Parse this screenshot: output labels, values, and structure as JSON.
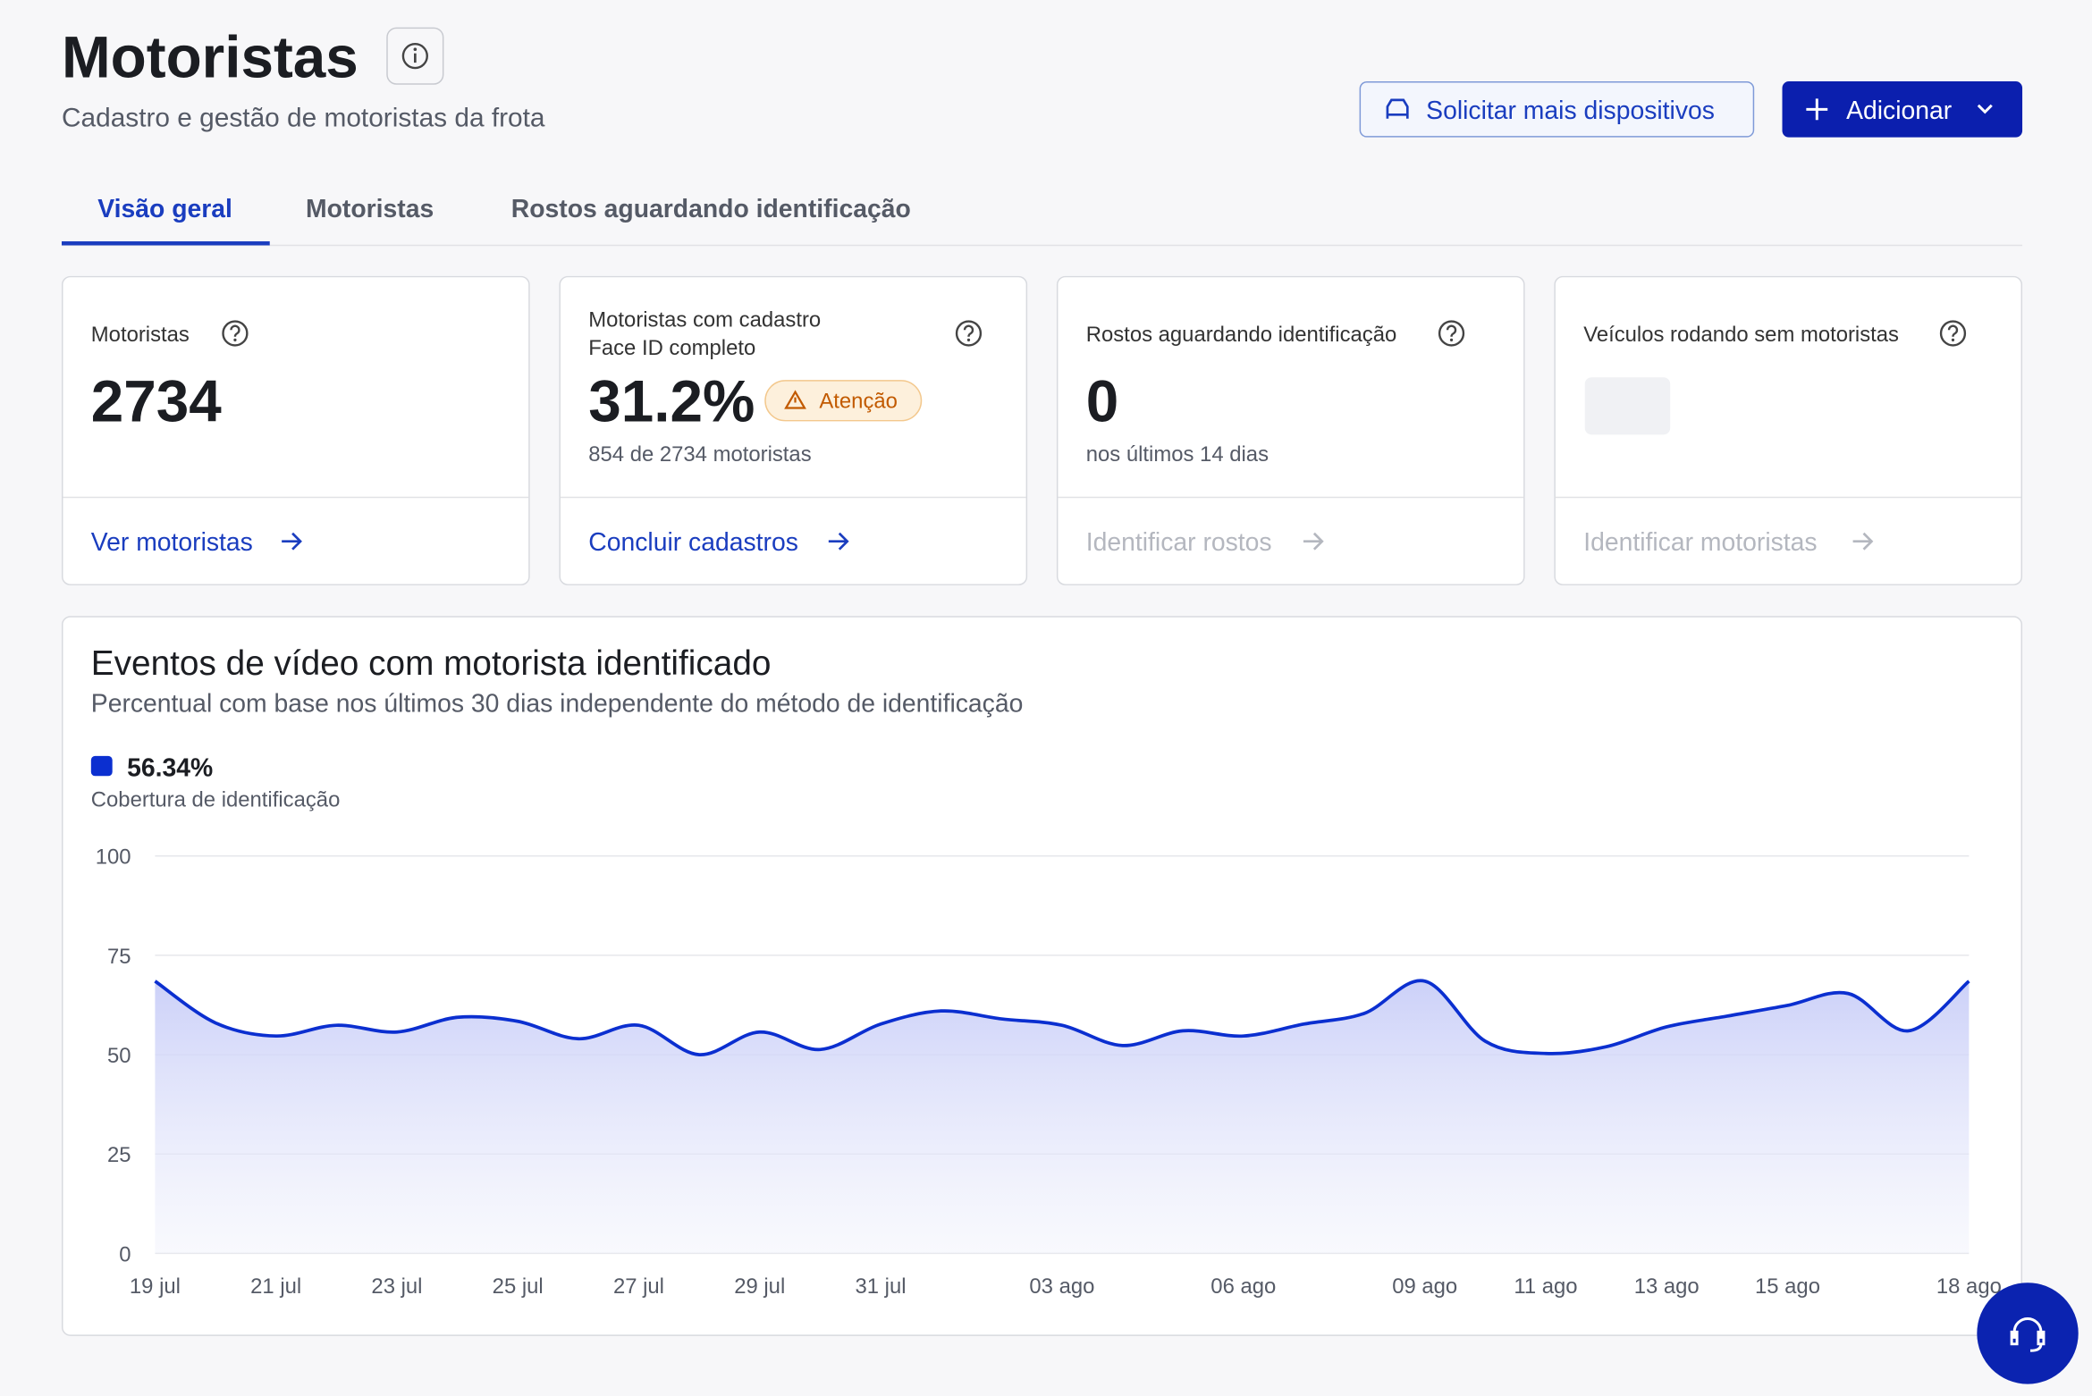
{
  "header": {
    "title": "Motoristas",
    "subtitle": "Cadastro e gestão de motoristas da frota"
  },
  "buttons": {
    "request": "Solicitar mais dispositivos",
    "add": "Adicionar"
  },
  "tabs": [
    "Visão geral",
    "Motoristas",
    "Rostos aguardando identificação"
  ],
  "cards": [
    {
      "label": "Motoristas",
      "value": "2734",
      "link": "Ver motoristas"
    },
    {
      "label_lines": [
        "Motoristas com cadastro",
        "Face ID completo"
      ],
      "value": "31.2%",
      "badge": "Atenção",
      "note": "854 de 2734 motoristas",
      "link": "Concluir cadastros"
    },
    {
      "label": "Rostos aguardando identificação",
      "value": "0",
      "note": "nos últimos 14 dias",
      "link": "Identificar rostos"
    },
    {
      "label": "Veículos rodando sem motoristas",
      "link": "Identificar motoristas"
    }
  ],
  "chart_data": {
    "type": "area",
    "title": "Eventos de vídeo com motorista identificado",
    "subtitle": "Percentual com base nos últimos 30 dias independente do método de identificação",
    "total_label": "56.34%",
    "categories": [
      "19 jul",
      null,
      "21 jul",
      null,
      "23 jul",
      null,
      "25 jul",
      null,
      "27 jul",
      null,
      "29 jul",
      null,
      "31 jul",
      null,
      null,
      "03 ago",
      null,
      null,
      "06 ago",
      null,
      null,
      "09 ago",
      null,
      "11 ago",
      null,
      "13 ago",
      null,
      "15 ago",
      null,
      null,
      "18 ago"
    ],
    "series": [
      {
        "name": "Cobertura de identificação",
        "color": "#0b2fd0",
        "values": [
          68.5,
          58,
          54.7,
          57.4,
          55.7,
          59.4,
          58.4,
          54,
          57.4,
          50,
          55.7,
          51.3,
          57.7,
          61,
          59,
          57.4,
          52.3,
          56,
          54.7,
          57.7,
          60.4,
          68.5,
          53.4,
          50.3,
          52,
          57,
          59.7,
          62.4,
          65.4,
          56,
          68.5
        ]
      }
    ],
    "ylim": [
      0,
      100
    ],
    "yticks": [
      0,
      25,
      50,
      75,
      100
    ],
    "grid": true
  }
}
